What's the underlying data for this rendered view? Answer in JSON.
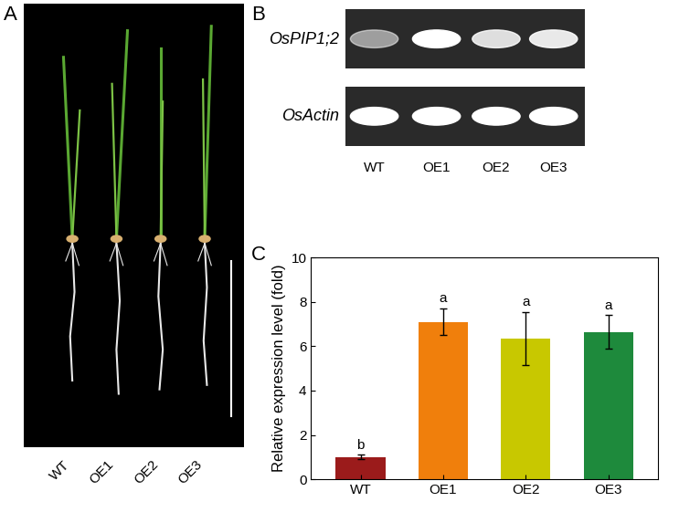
{
  "panel_letters": [
    "A",
    "B",
    "C"
  ],
  "panel_A": {
    "labels": [
      "WT",
      "OE1",
      "OE2",
      "OE3"
    ]
  },
  "panel_B": {
    "genes": [
      "OsPIP1;2",
      "OsActin"
    ],
    "lanes": [
      "WT",
      "OE1",
      "OE2",
      "OE3"
    ],
    "band_intensity": [
      [
        0.55,
        1.0,
        0.85,
        0.9
      ],
      [
        1.0,
        1.0,
        1.0,
        1.0
      ]
    ]
  },
  "chart_data": {
    "type": "bar",
    "categories": [
      "WT",
      "OE1",
      "OE2",
      "OE3"
    ],
    "values": [
      1.0,
      7.1,
      6.35,
      6.65
    ],
    "errors": [
      0.1,
      0.6,
      1.2,
      0.75
    ],
    "significance": [
      "b",
      "a",
      "a",
      "a"
    ],
    "colors": [
      "#9b1b1b",
      "#f07f0c",
      "#c8c800",
      "#1e8a3c"
    ],
    "y_label": "Relative expression level (fold)",
    "ylim": [
      0,
      10
    ],
    "yticks": [
      0,
      2,
      4,
      6,
      8,
      10
    ]
  }
}
